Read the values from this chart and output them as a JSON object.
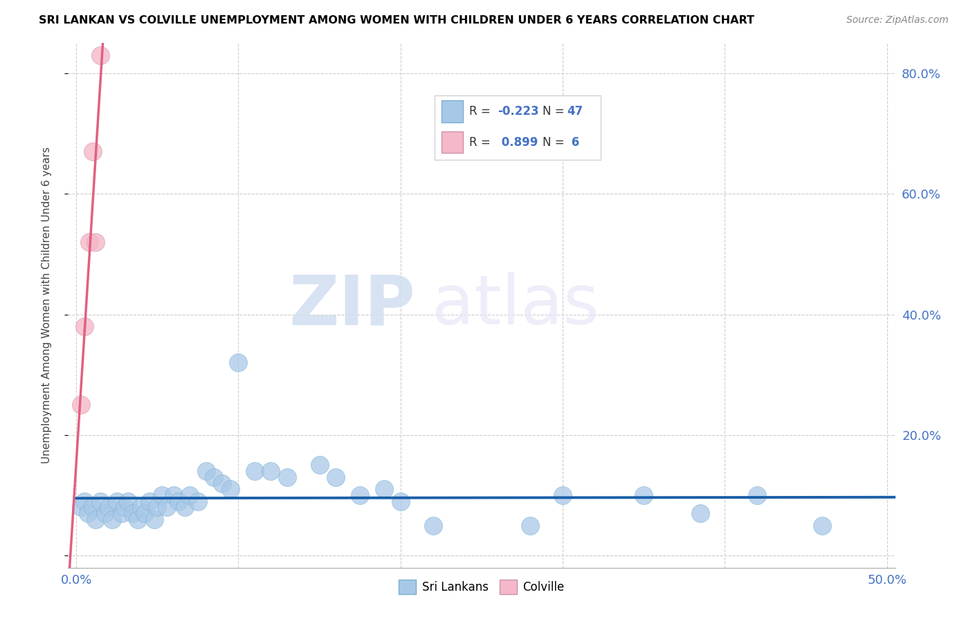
{
  "title": "SRI LANKAN VS COLVILLE UNEMPLOYMENT AMONG WOMEN WITH CHILDREN UNDER 6 YEARS CORRELATION CHART",
  "source": "Source: ZipAtlas.com",
  "ylabel": "Unemployment Among Women with Children Under 6 years",
  "xlim": [
    -0.005,
    0.505
  ],
  "ylim": [
    -0.02,
    0.85
  ],
  "xticks": [
    0.0,
    0.1,
    0.2,
    0.3,
    0.4,
    0.5
  ],
  "xtick_labels_show": [
    "0.0%",
    "",
    "",
    "",
    "",
    "50.0%"
  ],
  "yticks": [
    0.0,
    0.2,
    0.4,
    0.6,
    0.8
  ],
  "ytick_labels": [
    "",
    "20.0%",
    "40.0%",
    "60.0%",
    "80.0%"
  ],
  "sri_color": "#a8c8e8",
  "colville_color": "#f4b8c8",
  "sri_line_color": "#1a5fa8",
  "colville_line_color": "#e06080",
  "legend_R_color": "#4472c4",
  "watermark_zip": "ZIP",
  "watermark_atlas": "atlas",
  "sri_lankans_x": [
    0.003,
    0.005,
    0.007,
    0.01,
    0.012,
    0.015,
    0.018,
    0.02,
    0.022,
    0.025,
    0.028,
    0.03,
    0.032,
    0.035,
    0.038,
    0.04,
    0.042,
    0.045,
    0.048,
    0.05,
    0.053,
    0.056,
    0.06,
    0.063,
    0.067,
    0.07,
    0.075,
    0.08,
    0.085,
    0.09,
    0.095,
    0.1,
    0.11,
    0.12,
    0.13,
    0.15,
    0.16,
    0.175,
    0.19,
    0.2,
    0.22,
    0.28,
    0.3,
    0.35,
    0.385,
    0.42,
    0.46
  ],
  "sri_lankans_y": [
    0.08,
    0.09,
    0.07,
    0.08,
    0.06,
    0.09,
    0.07,
    0.08,
    0.06,
    0.09,
    0.07,
    0.08,
    0.09,
    0.07,
    0.06,
    0.08,
    0.07,
    0.09,
    0.06,
    0.08,
    0.1,
    0.08,
    0.1,
    0.09,
    0.08,
    0.1,
    0.09,
    0.14,
    0.13,
    0.12,
    0.11,
    0.32,
    0.14,
    0.14,
    0.13,
    0.15,
    0.13,
    0.1,
    0.11,
    0.09,
    0.05,
    0.05,
    0.1,
    0.1,
    0.07,
    0.1,
    0.05
  ],
  "colville_x": [
    0.003,
    0.005,
    0.008,
    0.01,
    0.012,
    0.015
  ],
  "colville_y": [
    0.25,
    0.38,
    0.52,
    0.67,
    0.52,
    0.83
  ],
  "colville_trendline_x": [
    -0.005,
    0.2
  ],
  "sri_trendline_x": [
    0.0,
    0.505
  ]
}
